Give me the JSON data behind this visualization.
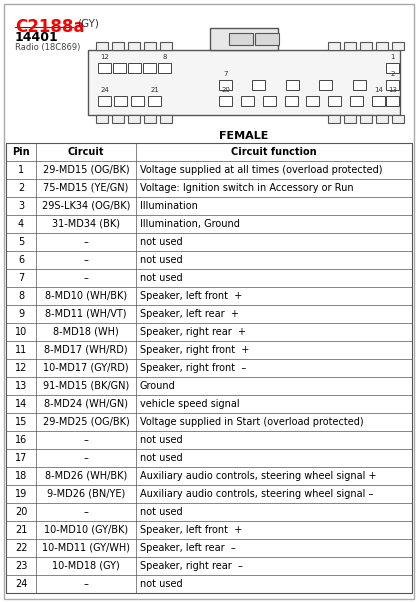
{
  "title": "C2188a",
  "title_color": "#FF0000",
  "title_suffix": "(GY)",
  "part_number": "14401",
  "part_desc": "Radio (18C869)",
  "connector_label": "FEMALE",
  "bg_color": "#FFFFFF",
  "table_header": [
    "Pin",
    "Circuit",
    "Circuit function"
  ],
  "rows": [
    [
      "1",
      "29-MD15 (OG/BK)",
      "Voltage supplied at all times (overload protected)"
    ],
    [
      "2",
      "75-MD15 (YE/GN)",
      "Voltage: Ignition switch in Accessory or Run"
    ],
    [
      "3",
      "29S-LK34 (OG/BK)",
      "Illumination"
    ],
    [
      "4",
      "31-MD34 (BK)",
      "Illumination, Ground"
    ],
    [
      "5",
      "–",
      "not used"
    ],
    [
      "6",
      "–",
      "not used"
    ],
    [
      "7",
      "–",
      "not used"
    ],
    [
      "8",
      "8-MD10 (WH/BK)",
      "Speaker, left front  +"
    ],
    [
      "9",
      "8-MD11 (WH/VT)",
      "Speaker, left rear  +"
    ],
    [
      "10",
      "8-MD18 (WH)",
      "Speaker, right rear  +"
    ],
    [
      "11",
      "8-MD17 (WH/RD)",
      "Speaker, right front  +"
    ],
    [
      "12",
      "10-MD17 (GY/RD)",
      "Speaker, right front  –"
    ],
    [
      "13",
      "91-MD15 (BK/GN)",
      "Ground"
    ],
    [
      "14",
      "8-MD24 (WH/GN)",
      "vehicle speed signal"
    ],
    [
      "15",
      "29-MD25 (OG/BK)",
      "Voltage supplied in Start (overload protected)"
    ],
    [
      "16",
      "–",
      "not used"
    ],
    [
      "17",
      "–",
      "not used"
    ],
    [
      "18",
      "8-MD26 (WH/BK)",
      "Auxiliary audio controls, steering wheel signal +"
    ],
    [
      "19",
      "9-MD26 (BN/YE)",
      "Auxiliary audio controls, steering wheel signal –"
    ],
    [
      "20",
      "–",
      "not used"
    ],
    [
      "21",
      "10-MD10 (GY/BK)",
      "Speaker, left front  +"
    ],
    [
      "22",
      "10-MD11 (GY/WH)",
      "Speaker, left rear  –"
    ],
    [
      "23",
      "10-MD18 (GY)",
      "Speaker, right rear  –"
    ],
    [
      "24",
      "–",
      "not used"
    ]
  ]
}
